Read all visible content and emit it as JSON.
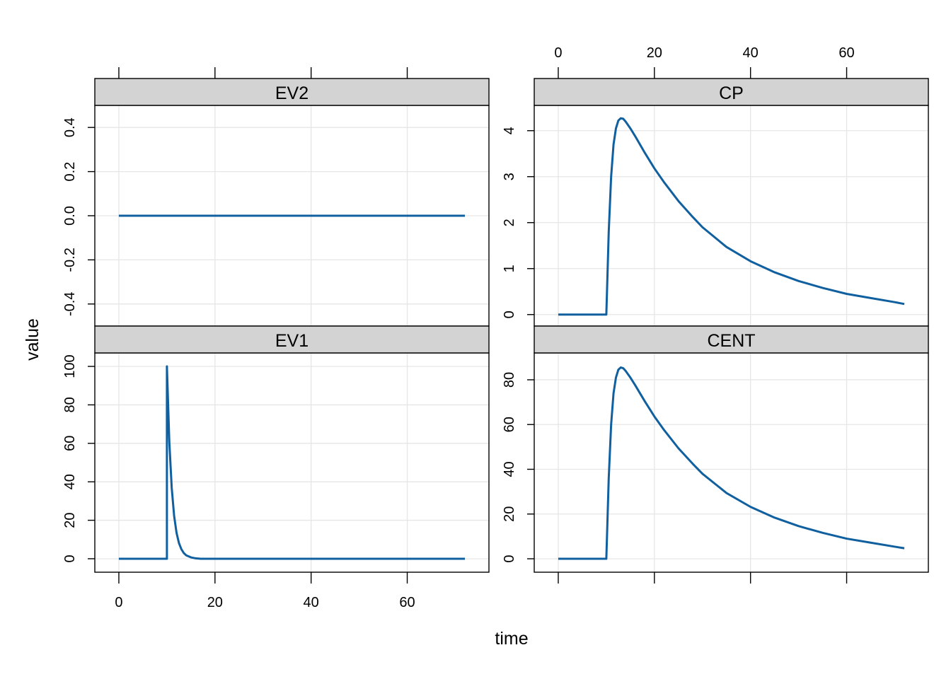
{
  "chart_data": {
    "type": "line",
    "layout": "trellis 2x2",
    "xlabel": "time",
    "ylabel": "value",
    "xlim": [
      -5,
      77
    ],
    "x_ticks": [
      0,
      20,
      40,
      60
    ],
    "grid": true,
    "line_color": "#1060a0",
    "panels": [
      {
        "name": "EV2",
        "ylim": [
          -0.5,
          0.5
        ],
        "y_ticks": [
          -0.4,
          -0.2,
          0.0,
          0.2,
          0.4
        ],
        "y_tick_labels": [
          "-0.4",
          "-0.2",
          "0.0",
          "0.2",
          "0.4"
        ],
        "x": [
          0,
          72
        ],
        "y": [
          0,
          0
        ]
      },
      {
        "name": "CP",
        "ylim": [
          -0.25,
          4.55
        ],
        "y_ticks": [
          0,
          1,
          2,
          3,
          4
        ],
        "y_tick_labels": [
          "0",
          "1",
          "2",
          "3",
          "4"
        ],
        "x": [
          0,
          10,
          10.5,
          11,
          11.5,
          12,
          12.5,
          13,
          13.5,
          14,
          15,
          16,
          18,
          20,
          22,
          25,
          28,
          30,
          35,
          40,
          45,
          50,
          55,
          60,
          65,
          70,
          72
        ],
        "y": [
          0,
          0,
          1.8,
          3.0,
          3.7,
          4.05,
          4.22,
          4.27,
          4.26,
          4.2,
          4.05,
          3.88,
          3.52,
          3.18,
          2.88,
          2.47,
          2.12,
          1.9,
          1.47,
          1.16,
          0.92,
          0.73,
          0.58,
          0.45,
          0.36,
          0.27,
          0.23
        ]
      },
      {
        "name": "EV1",
        "ylim": [
          -7,
          107
        ],
        "y_ticks": [
          0,
          20,
          40,
          60,
          80,
          100
        ],
        "y_tick_labels": [
          "0",
          "20",
          "40",
          "60",
          "80",
          "100"
        ],
        "x": [
          0,
          10,
          10,
          10.5,
          11,
          11.5,
          12,
          12.5,
          13,
          13.5,
          14,
          15,
          16,
          17,
          72
        ],
        "y": [
          0,
          0,
          100,
          60.7,
          36.8,
          22.3,
          13.5,
          8.2,
          5.0,
          3.0,
          1.8,
          0.7,
          0.2,
          0,
          0
        ]
      },
      {
        "name": "CENT",
        "ylim": [
          -6,
          92
        ],
        "y_ticks": [
          0,
          20,
          40,
          60,
          80
        ],
        "y_tick_labels": [
          "0",
          "20",
          "40",
          "60",
          "80"
        ],
        "x": [
          0,
          10,
          10.5,
          11,
          11.5,
          12,
          12.5,
          13,
          13.5,
          14,
          15,
          16,
          18,
          20,
          22,
          25,
          28,
          30,
          35,
          40,
          45,
          50,
          55,
          60,
          65,
          70,
          72
        ],
        "y": [
          0,
          0,
          36,
          60,
          74,
          81,
          84.5,
          85.5,
          85.2,
          84,
          81,
          77.6,
          70.4,
          63.6,
          57.6,
          49.4,
          42.4,
          38,
          29.4,
          23.2,
          18.4,
          14.6,
          11.6,
          9.0,
          7.2,
          5.4,
          4.7
        ]
      }
    ]
  }
}
